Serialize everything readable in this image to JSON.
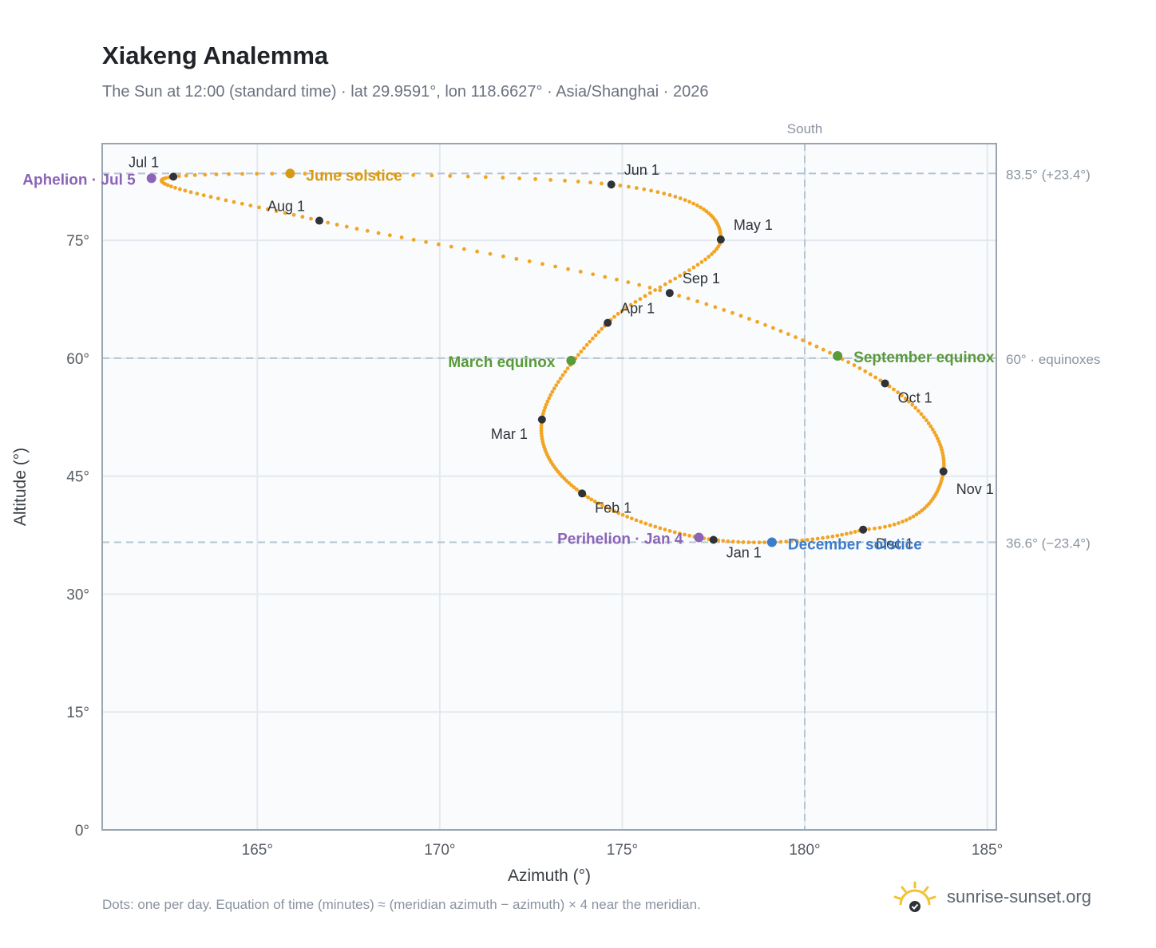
{
  "page": {
    "title": "Xiakeng Analemma",
    "subtitle": "The Sun at 12:00 (standard time) · lat 29.9591°, lon 118.6627° · Asia/Shanghai · 2026",
    "footnote": "Dots: one per day. Equation of time (minutes) ≈ (meridian azimuth − azimuth) × 4 near the meridian.",
    "brand": "sunrise-sunset.org"
  },
  "colors": {
    "curve": "#f2a524",
    "month_marker": "#2f3338",
    "equinox": "#5a9a3a",
    "june_solstice": "#d99a12",
    "december_solstice": "#3d7cc9",
    "perihelion_aphelion": "#8b64b8",
    "gridline": "#e4e9ef",
    "refline": "#b4c4d0",
    "axis": "#9aa5b1",
    "plot_background": "#f9fbfd",
    "brand_sun": "#f2c230"
  },
  "chart_data": {
    "type": "scatter",
    "xlabel": "Azimuth (°)",
    "ylabel": "Altitude (°)",
    "xlim": [
      160.75,
      185.25
    ],
    "ylim": [
      0,
      87.3
    ],
    "xticks": [
      165,
      170,
      175,
      180,
      185
    ],
    "xtick_labels": [
      "165°",
      "170°",
      "175°",
      "180°",
      "185°"
    ],
    "yticks": [
      0,
      15,
      30,
      45,
      60,
      75
    ],
    "ytick_labels": [
      "0°",
      "15°",
      "30°",
      "45°",
      "60°",
      "75°"
    ],
    "grid": true,
    "meridian": {
      "azimuth": 180,
      "label": "South"
    },
    "reference_lines": [
      {
        "altitude": 83.5,
        "label": "83.5° (+23.4°)"
      },
      {
        "altitude": 60.0,
        "label": "60° · equinoxes"
      },
      {
        "altitude": 36.6,
        "label": "36.6° (−23.4°)"
      }
    ],
    "series": [
      {
        "points": [
          [
            177.5,
            36.9
          ],
          [
            173.9,
            42.8
          ],
          [
            172.8,
            52.2
          ],
          [
            174.6,
            64.5
          ],
          [
            177.7,
            75.1
          ],
          [
            174.7,
            82.1
          ],
          [
            162.7,
            83.1
          ],
          [
            166.7,
            77.5
          ],
          [
            176.3,
            68.3
          ],
          [
            182.2,
            56.8
          ],
          [
            183.8,
            45.6
          ],
          [
            181.6,
            38.2
          ],
          [
            177.5,
            36.9
          ]
        ]
      }
    ],
    "month_markers": [
      {
        "label": "Jan 1",
        "azimuth": 177.5,
        "altitude": 36.9
      },
      {
        "label": "Feb 1",
        "azimuth": 173.9,
        "altitude": 42.8
      },
      {
        "label": "Mar 1",
        "azimuth": 172.8,
        "altitude": 52.2
      },
      {
        "label": "Apr 1",
        "azimuth": 174.6,
        "altitude": 64.5
      },
      {
        "label": "May 1",
        "azimuth": 177.7,
        "altitude": 75.1
      },
      {
        "label": "Jun 1",
        "azimuth": 174.7,
        "altitude": 82.1
      },
      {
        "label": "Jul 1",
        "azimuth": 162.7,
        "altitude": 83.1
      },
      {
        "label": "Aug 1",
        "azimuth": 166.7,
        "altitude": 77.5
      },
      {
        "label": "Sep 1",
        "azimuth": 176.3,
        "altitude": 68.3
      },
      {
        "label": "Oct 1",
        "azimuth": 182.2,
        "altitude": 56.8
      },
      {
        "label": "Nov 1",
        "azimuth": 183.8,
        "altitude": 45.6
      },
      {
        "label": "Dec 1",
        "azimuth": 181.6,
        "altitude": 38.2
      }
    ],
    "events": [
      {
        "label": "March equinox",
        "azimuth": 173.6,
        "altitude": 59.7,
        "kind": "equinox"
      },
      {
        "label": "June solstice",
        "azimuth": 165.9,
        "altitude": 83.5,
        "kind": "june_solstice"
      },
      {
        "label": "September equinox",
        "azimuth": 180.9,
        "altitude": 60.3,
        "kind": "equinox"
      },
      {
        "label": "December solstice",
        "azimuth": 179.1,
        "altitude": 36.6,
        "kind": "december_solstice"
      },
      {
        "label": "Perihelion · Jan 4",
        "azimuth": 177.1,
        "altitude": 37.2,
        "kind": "perihelion_aphelion"
      },
      {
        "label": "Aphelion · Jul 5",
        "azimuth": 162.1,
        "altitude": 82.9,
        "kind": "perihelion_aphelion"
      }
    ]
  }
}
